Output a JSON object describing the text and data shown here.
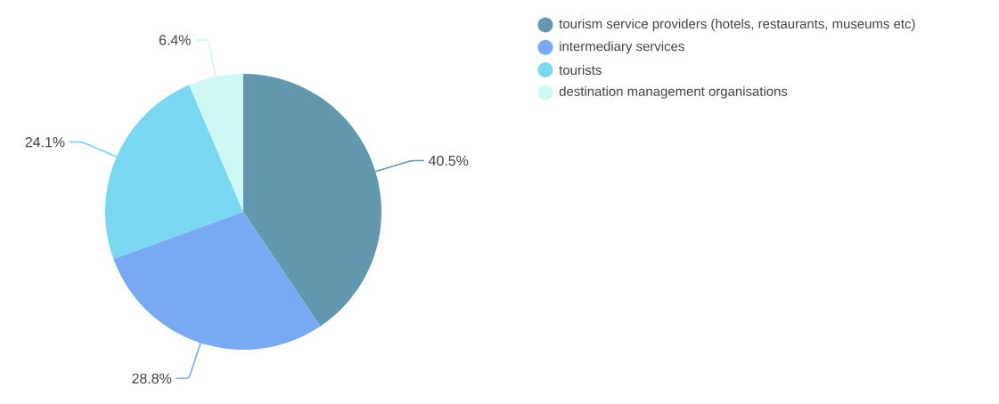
{
  "chart_data": {
    "type": "pie",
    "categories": [
      "tourism service providers (hotels, restaurants, museums etc)",
      "intermediary services",
      "tourists",
      "destination management organisations"
    ],
    "values": [
      40.5,
      28.8,
      24.1,
      6.4
    ],
    "value_labels": [
      "40.5%",
      "28.8%",
      "24.1%",
      "6.4%"
    ],
    "colors": [
      "#6198ad",
      "#78aaf4",
      "#78d7f1",
      "#cdf8f3"
    ],
    "legend": "top right"
  }
}
